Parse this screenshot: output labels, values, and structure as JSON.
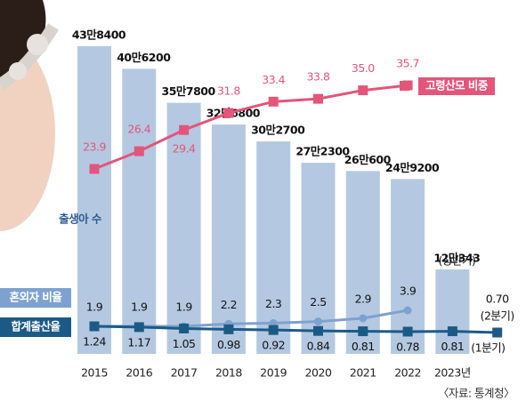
{
  "chart_data": {
    "type": "bar",
    "categories": [
      "2015",
      "2016",
      "2017",
      "2018",
      "2019",
      "2020",
      "2021",
      "2022",
      "2023년",
      null
    ],
    "series": [
      {
        "name": "출생아 수",
        "type": "bar",
        "color": "#b4c9e1",
        "values": [
          438400,
          406200,
          357800,
          326800,
          302700,
          272300,
          260600,
          249200,
          120343,
          null
        ],
        "value_labels": [
          "43만8400",
          "40만6200",
          "35만7800",
          "32만6800",
          "30만2700",
          "27만2300",
          "26만600",
          "24만9200",
          "12만343",
          null
        ]
      },
      {
        "name": "고령산모 비중",
        "type": "line",
        "color": "#e3557a",
        "values": [
          23.9,
          26.4,
          29.4,
          31.8,
          33.4,
          33.8,
          35.0,
          35.7,
          null,
          null
        ],
        "value_labels": [
          "23.9",
          "26.4",
          "29.4",
          "31.8",
          "33.4",
          "33.8",
          "35.0",
          "35.7",
          null,
          null
        ]
      },
      {
        "name": "혼외자 비율",
        "type": "line",
        "color": "#7ea2cf",
        "values": [
          1.9,
          1.9,
          1.9,
          2.2,
          2.3,
          2.5,
          2.9,
          3.9,
          null,
          null
        ]
      },
      {
        "name": "합계출산율",
        "type": "line",
        "color": "#1c5a86",
        "values": [
          1.24,
          1.17,
          1.05,
          0.98,
          0.92,
          0.84,
          0.81,
          0.78,
          0.81,
          0.7
        ],
        "value_labels": [
          "1.24",
          "1.17",
          "1.05",
          "0.98",
          "0.92",
          "0.84",
          "0.81",
          "0.78",
          "0.81",
          "0.70"
        ]
      }
    ],
    "annotations": [
      "(상반기)",
      "(1분기)",
      "(2분기)"
    ],
    "source": "〈자료: 통계청〉"
  }
}
